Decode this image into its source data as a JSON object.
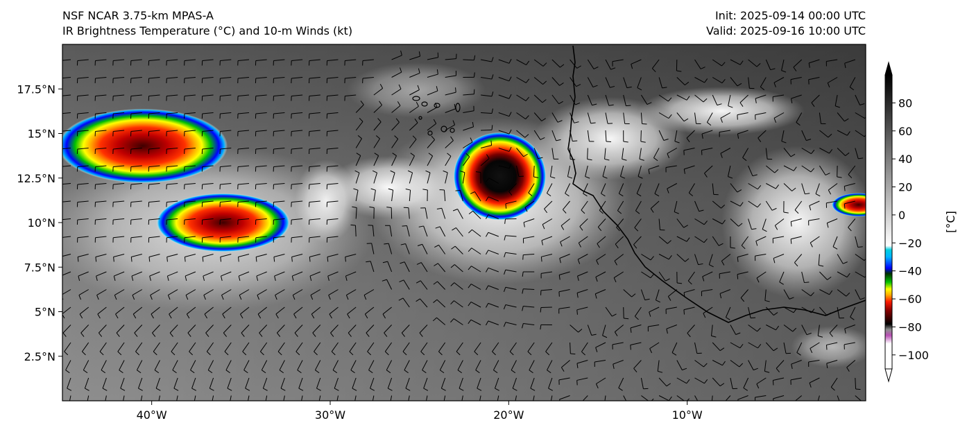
{
  "header": {
    "model": "NSF NCAR 3.75-km MPAS-A",
    "field": "IR Brightness Temperature (°C) and 10-m Winds (kt)",
    "init": "Init: 2025-09-14 00:00 UTC",
    "valid": "Valid: 2025-09-16 10:00 UTC"
  },
  "map": {
    "lon_range": [
      -45,
      0
    ],
    "lat_range": [
      0,
      20
    ],
    "lon_ticks": [
      {
        "value": -40,
        "label": "40°W"
      },
      {
        "value": -30,
        "label": "30°W"
      },
      {
        "value": -20,
        "label": "20°W"
      },
      {
        "value": -10,
        "label": "10°W"
      }
    ],
    "lat_ticks": [
      {
        "value": 17.5,
        "label": "17.5°N"
      },
      {
        "value": 15,
        "label": "15°N"
      },
      {
        "value": 12.5,
        "label": "12.5°N"
      },
      {
        "value": 10,
        "label": "10°N"
      },
      {
        "value": 7.5,
        "label": "7.5°N"
      },
      {
        "value": 5,
        "label": "5°N"
      },
      {
        "value": 2.5,
        "label": "2.5°N"
      }
    ],
    "storms": [
      {
        "name": "tropical-cyclone",
        "lon": -20.5,
        "lat": 12.6,
        "radius_deg": 2.6,
        "core_temp_c": -80
      },
      {
        "name": "western-cluster-north",
        "lon": -40.5,
        "lat": 14.3,
        "radius_deg": 3.8,
        "core_temp_c": -72
      },
      {
        "name": "western-cluster-south",
        "lon": -36.0,
        "lat": 10.0,
        "radius_deg": 3.0,
        "core_temp_c": -65
      },
      {
        "name": "eastern-cell",
        "lon": -0.4,
        "lat": 11.0,
        "radius_deg": 1.2,
        "core_temp_c": -70
      }
    ]
  },
  "colorbar": {
    "label": "[°C]",
    "range": [
      -110,
      100
    ],
    "ticks": [
      "80",
      "60",
      "40",
      "20",
      "0",
      "−20",
      "−40",
      "−60",
      "−80",
      "−100"
    ],
    "tick_values": [
      80,
      60,
      40,
      20,
      0,
      -20,
      -40,
      -60,
      -80,
      -100
    ],
    "stops": [
      {
        "t": -110,
        "color": "#ffffff"
      },
      {
        "t": -92,
        "color": "#ffffff"
      },
      {
        "t": -86,
        "color": "#b94fb5"
      },
      {
        "t": -82,
        "color": "#8e8e8e"
      },
      {
        "t": -78,
        "color": "#000000"
      },
      {
        "t": -68,
        "color": "#8b0000"
      },
      {
        "t": -62,
        "color": "#ff1a00"
      },
      {
        "t": -57,
        "color": "#ffb000"
      },
      {
        "t": -53,
        "color": "#ffff00"
      },
      {
        "t": -48,
        "color": "#00c000"
      },
      {
        "t": -42,
        "color": "#003000"
      },
      {
        "t": -38,
        "color": "#0000ff"
      },
      {
        "t": -30,
        "color": "#00b4ff"
      },
      {
        "t": -25,
        "color": "#00d0e0"
      },
      {
        "t": -22,
        "color": "#ffffff"
      },
      {
        "t": 100,
        "color": "#000000"
      }
    ]
  }
}
